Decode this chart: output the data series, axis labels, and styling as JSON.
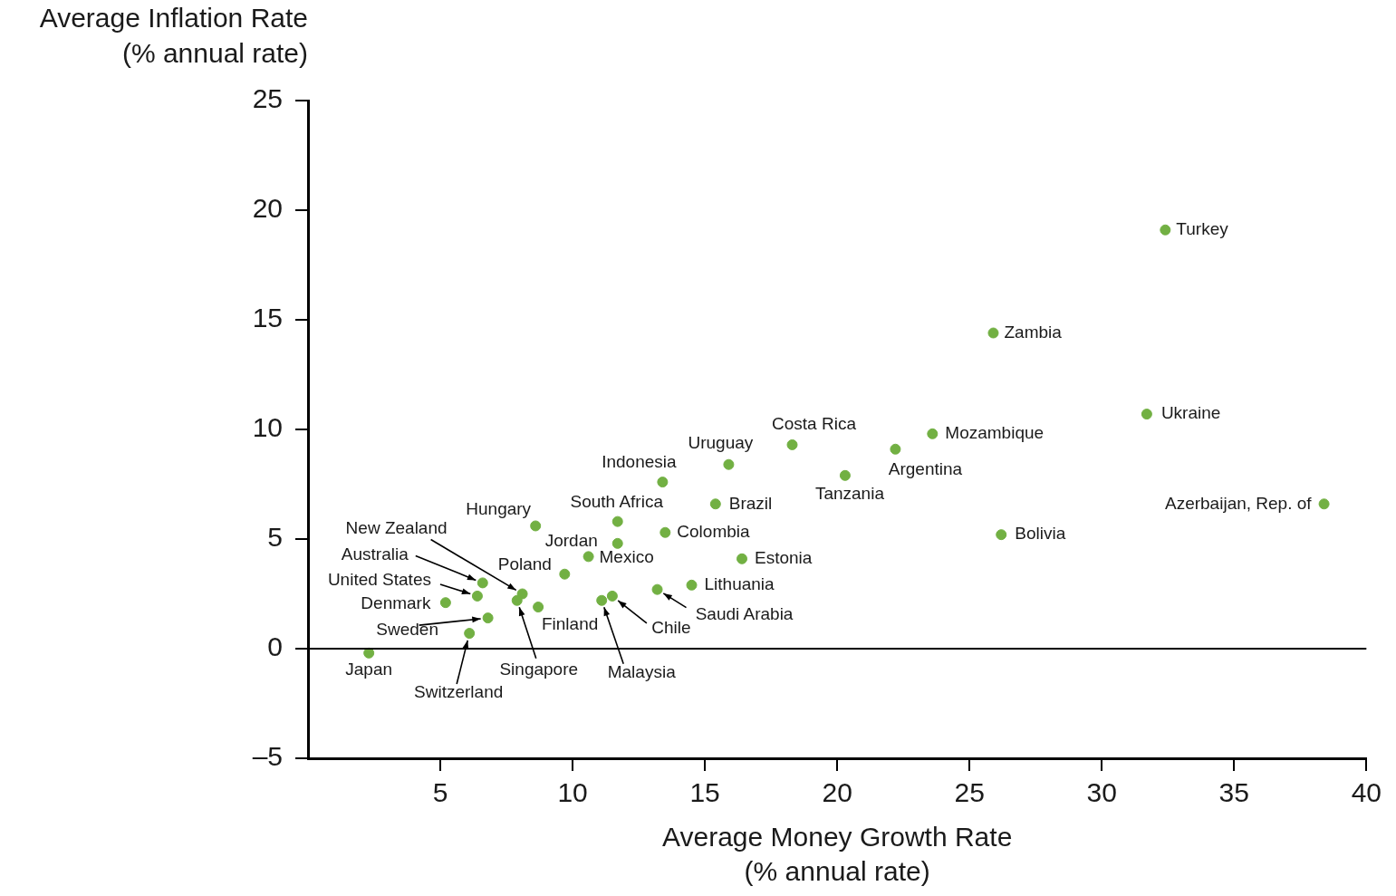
{
  "chart_data": {
    "type": "scatter",
    "xlabel": "Average Money Growth Rate\n(% annual rate)",
    "ylabel": "Average Inflation Rate\n(% annual rate)",
    "xlim": [
      0,
      40
    ],
    "xticks": [
      5,
      10,
      15,
      20,
      25,
      30,
      35,
      40
    ],
    "ylim": [
      -5,
      25
    ],
    "yticks": [
      {
        "value": -5,
        "label": "–5"
      },
      0,
      5,
      10,
      15,
      20,
      25
    ],
    "grid": false,
    "legend": false,
    "marker": "circle",
    "ref_lines": [
      {
        "axis": "y",
        "value": 0,
        "color": "#000000"
      }
    ],
    "series": [
      {
        "color": "#72b043",
        "x": [
          32.4,
          25.9,
          31.7,
          38.4,
          23.6,
          18.3,
          22.2,
          20.3,
          26.2,
          15.9,
          13.4,
          15.4,
          11.7,
          13.5,
          11.7,
          10.6,
          16.4,
          9.7,
          14.5,
          13.2,
          11.5,
          11.1,
          8.6,
          8.7,
          8.1,
          7.9,
          6.6,
          6.4,
          5.2,
          6.8,
          6.1,
          2.3
        ],
        "values": [
          19.1,
          14.4,
          10.7,
          6.6,
          9.8,
          9.3,
          9.1,
          7.9,
          5.2,
          8.4,
          7.6,
          6.6,
          5.8,
          5.3,
          4.8,
          4.2,
          4.1,
          3.4,
          2.9,
          2.7,
          2.4,
          2.2,
          5.6,
          1.9,
          2.5,
          2.2,
          3.0,
          2.4,
          2.1,
          1.4,
          0.7,
          -0.2
        ]
      }
    ],
    "annotations": [
      {
        "text": "Turkey",
        "x": 32.4,
        "y": 19.1
      },
      {
        "text": "Zambia",
        "x": 25.9,
        "y": 14.4
      },
      {
        "text": "Ukraine",
        "x": 31.7,
        "y": 10.7
      },
      {
        "text": "Azerbaijan, Rep. of",
        "x": 38.4,
        "y": 6.6
      },
      {
        "text": "Mozambique",
        "x": 23.6,
        "y": 9.8
      },
      {
        "text": "Costa Rica",
        "x": 18.3,
        "y": 9.3
      },
      {
        "text": "Argentina",
        "x": 22.2,
        "y": 9.1
      },
      {
        "text": "Tanzania",
        "x": 20.3,
        "y": 7.9
      },
      {
        "text": "Bolivia",
        "x": 26.2,
        "y": 5.2
      },
      {
        "text": "Uruguay",
        "x": 15.9,
        "y": 8.4
      },
      {
        "text": "Indonesia",
        "x": 13.4,
        "y": 7.6
      },
      {
        "text": "Brazil",
        "x": 15.4,
        "y": 6.6
      },
      {
        "text": "South Africa",
        "x": 11.7,
        "y": 5.8
      },
      {
        "text": "Colombia",
        "x": 13.5,
        "y": 5.3
      },
      {
        "text": "Jordan",
        "x": 11.7,
        "y": 4.8
      },
      {
        "text": "Mexico",
        "x": 10.6,
        "y": 4.2
      },
      {
        "text": "Estonia",
        "x": 16.4,
        "y": 4.1
      },
      {
        "text": "Poland",
        "x": 9.7,
        "y": 3.4
      },
      {
        "text": "Lithuania",
        "x": 14.5,
        "y": 2.9
      },
      {
        "text": "Saudi Arabia",
        "x": 13.2,
        "y": 2.7
      },
      {
        "text": "Chile",
        "x": 11.5,
        "y": 2.4
      },
      {
        "text": "Malaysia",
        "x": 11.1,
        "y": 2.2
      },
      {
        "text": "Hungary",
        "x": 8.6,
        "y": 5.6
      },
      {
        "text": "Finland",
        "x": 8.7,
        "y": 1.9
      },
      {
        "text": "New Zealand",
        "x": 8.1,
        "y": 2.5
      },
      {
        "text": "Singapore",
        "x": 7.9,
        "y": 2.2
      },
      {
        "text": "Australia",
        "x": 6.6,
        "y": 3.0
      },
      {
        "text": "United States",
        "x": 6.4,
        "y": 2.4
      },
      {
        "text": "Denmark",
        "x": 5.2,
        "y": 2.1
      },
      {
        "text": "Sweden",
        "x": 6.8,
        "y": 1.4
      },
      {
        "text": "Switzerland",
        "x": 6.1,
        "y": 0.7
      },
      {
        "text": "Japan",
        "x": 2.3,
        "y": -0.2
      }
    ]
  }
}
